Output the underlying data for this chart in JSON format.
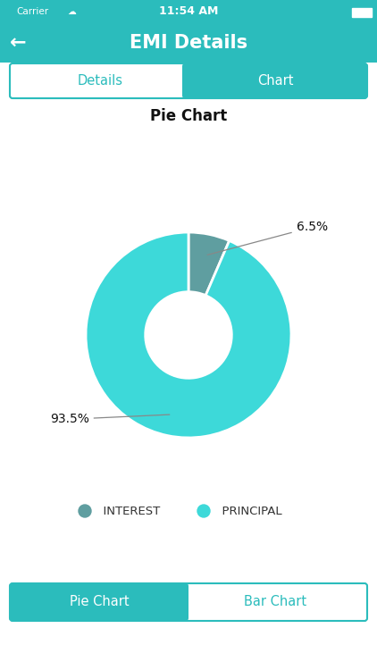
{
  "bg_color": "#ffffff",
  "header_color": "#2bbcbc",
  "header_text": "EMI Details",
  "tab_details_text": "Details",
  "tab_chart_text": "Chart",
  "chart_title": "Pie Chart",
  "slices": [
    6.5,
    93.5
  ],
  "slice_colors": [
    "#5f9ea0",
    "#3dd9d9"
  ],
  "slice_labels": [
    "6.5%",
    "93.5%"
  ],
  "legend_labels": [
    "INTEREST",
    "PRINCIPAL"
  ],
  "legend_colors": [
    "#5f9ea0",
    "#3dd9d9"
  ],
  "bottom_tab_left": "Pie Chart",
  "bottom_tab_right": "Bar Chart",
  "tab_border_color": "#2bbcbc",
  "status_time": "11:54 AM",
  "status_carrier": "Carrier"
}
